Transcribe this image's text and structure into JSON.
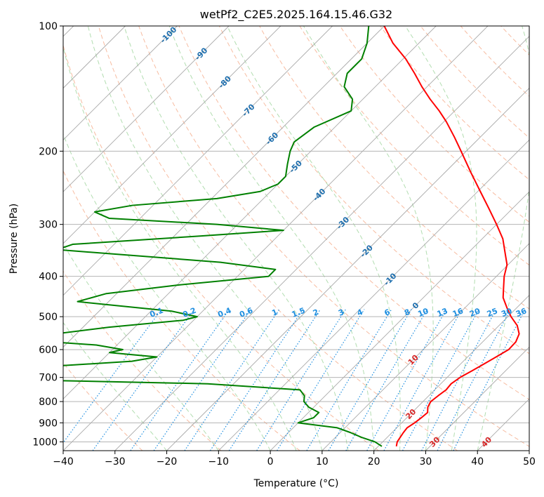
{
  "chart_data": {
    "type": "line",
    "title": "wetPf2_C2E5.2025.164.15.46.G32",
    "xlabel": "Temperature (°C)",
    "ylabel": "Pressure (hPa)",
    "xlim": [
      -40,
      50
    ],
    "ylim": [
      1050,
      100
    ],
    "yscale": "log",
    "xticks": [
      "−40",
      "−30",
      "−20",
      "−10",
      "0",
      "10",
      "20",
      "30",
      "40",
      "50"
    ],
    "yticks": [
      {
        "p": 100,
        "label": "100"
      },
      {
        "p": 200,
        "label": "200"
      },
      {
        "p": 300,
        "label": "300"
      },
      {
        "p": 400,
        "label": "400"
      },
      {
        "p": 500,
        "label": "500"
      },
      {
        "p": 600,
        "label": "600"
      },
      {
        "p": 700,
        "label": "700"
      },
      {
        "p": 800,
        "label": "800"
      },
      {
        "p": 900,
        "label": "900"
      },
      {
        "p": 1000,
        "label": "1000"
      }
    ],
    "grid": true,
    "series": [
      {
        "color": "#ff0000",
        "points": [
          [
            1025,
            23.5
          ],
          [
            1000,
            22.8
          ],
          [
            975,
            22.5
          ],
          [
            950,
            22.2
          ],
          [
            925,
            22.0
          ],
          [
            900,
            22.5
          ],
          [
            875,
            22.8
          ],
          [
            850,
            23.0
          ],
          [
            825,
            22.0
          ],
          [
            800,
            21.5
          ],
          [
            775,
            21.8
          ],
          [
            750,
            22.2
          ],
          [
            725,
            22.0
          ],
          [
            700,
            22.5
          ],
          [
            675,
            23.5
          ],
          [
            650,
            24.5
          ],
          [
            625,
            25.5
          ],
          [
            600,
            26.5
          ],
          [
            575,
            26.4
          ],
          [
            550,
            25.5
          ],
          [
            525,
            23.5
          ],
          [
            500,
            20.6
          ],
          [
            475,
            18.0
          ],
          [
            450,
            15.4
          ],
          [
            425,
            13.5
          ],
          [
            400,
            11.5
          ],
          [
            375,
            9.8
          ],
          [
            350,
            7.0
          ],
          [
            325,
            4.0
          ],
          [
            300,
            0.0
          ],
          [
            275,
            -4.5
          ],
          [
            250,
            -9.5
          ],
          [
            225,
            -15.0
          ],
          [
            200,
            -21.0
          ],
          [
            185,
            -25.0
          ],
          [
            170,
            -29.5
          ],
          [
            160,
            -33.0
          ],
          [
            150,
            -37.0
          ],
          [
            140,
            -41.0
          ],
          [
            130,
            -45.0
          ],
          [
            120,
            -49.5
          ],
          [
            110,
            -55.0
          ],
          [
            100,
            -60.0
          ]
        ]
      },
      {
        "color": "#008000",
        "points": [
          [
            1025,
            20.7
          ],
          [
            1000,
            18.5
          ],
          [
            975,
            15.0
          ],
          [
            950,
            12.0
          ],
          [
            925,
            8.5
          ],
          [
            900,
            0.0
          ],
          [
            875,
            2.0
          ],
          [
            850,
            2.0
          ],
          [
            825,
            -1.0
          ],
          [
            800,
            -3.0
          ],
          [
            775,
            -4.0
          ],
          [
            750,
            -6.0
          ],
          [
            725,
            -25.0
          ],
          [
            710,
            -60.0
          ],
          [
            695,
            -90.0
          ],
          [
            680,
            -76.0
          ],
          [
            660,
            -60.0
          ],
          [
            640,
            -44.0
          ],
          [
            625,
            -40.0
          ],
          [
            610,
            -50.0
          ],
          [
            600,
            -48.0
          ],
          [
            585,
            -54.0
          ],
          [
            570,
            -68.0
          ],
          [
            550,
            -64.0
          ],
          [
            530,
            -55.0
          ],
          [
            510,
            -42.0
          ],
          [
            500,
            -40.0
          ],
          [
            485,
            -46.0
          ],
          [
            470,
            -58.0
          ],
          [
            460,
            -66.0
          ],
          [
            440,
            -62.0
          ],
          [
            420,
            -50.0
          ],
          [
            400,
            -34.0
          ],
          [
            385,
            -34.0
          ],
          [
            370,
            -46.0
          ],
          [
            355,
            -66.0
          ],
          [
            345,
            -80.0
          ],
          [
            335,
            -78.0
          ],
          [
            320,
            -55.0
          ],
          [
            310,
            -40.0
          ],
          [
            300,
            -54.0
          ],
          [
            290,
            -76.0
          ],
          [
            280,
            -80.0
          ],
          [
            270,
            -74.0
          ],
          [
            260,
            -59.0
          ],
          [
            250,
            -52.0
          ],
          [
            240,
            -50.0
          ],
          [
            230,
            -50.0
          ],
          [
            215,
            -52.0
          ],
          [
            200,
            -54.0
          ],
          [
            190,
            -55.0
          ],
          [
            175,
            -54.0
          ],
          [
            160,
            -50.0
          ],
          [
            150,
            -52.0
          ],
          [
            140,
            -56.0
          ],
          [
            130,
            -58.0
          ],
          [
            120,
            -58.0
          ],
          [
            110,
            -60.0
          ],
          [
            100,
            -63.0
          ]
        ]
      }
    ],
    "skew_reference_lines": {
      "isotherms_deg_c": [
        -120,
        -110,
        -100,
        -90,
        -80,
        -70,
        -60,
        -50,
        -40,
        -30,
        -20,
        -10,
        0,
        10,
        20,
        30,
        40,
        50
      ],
      "isotherm_labels": [
        {
          "t": -100,
          "text": "-100"
        },
        {
          "t": -90,
          "text": "-90"
        },
        {
          "t": -80,
          "text": "-80"
        },
        {
          "t": -70,
          "text": "-70"
        },
        {
          "t": -60,
          "text": "-60"
        },
        {
          "t": -50,
          "text": "-50"
        },
        {
          "t": -40,
          "text": "-40"
        },
        {
          "t": -30,
          "text": "-30"
        },
        {
          "t": -20,
          "text": "-20"
        },
        {
          "t": -10,
          "text": "-10"
        },
        {
          "t": 0,
          "text": "0"
        },
        {
          "t": 10,
          "text": "10"
        },
        {
          "t": 20,
          "text": "20"
        },
        {
          "t": 30,
          "text": "30"
        },
        {
          "t": 40,
          "text": "40"
        }
      ],
      "mixing_ratios_g_kg": [
        0.1,
        0.2,
        0.4,
        0.6,
        1,
        1.5,
        2,
        3,
        4,
        6,
        8,
        10,
        13,
        16,
        20,
        25,
        30,
        36
      ],
      "mixing_ratio_labels": [
        "0.1",
        "0.2",
        "0.4",
        "0.6",
        "1",
        "1.5",
        "2",
        "3",
        "4",
        "6",
        "8",
        "10",
        "13",
        "16",
        "20",
        "25",
        "30",
        "36"
      ],
      "dry_adiabats_theta_k": [
        230,
        245,
        260,
        275,
        290,
        305,
        320,
        335,
        350,
        365,
        380,
        395,
        410,
        425,
        440,
        455,
        470,
        485,
        500,
        515,
        530
      ],
      "moist_adiabats_start_deg_c": [
        -20,
        -10,
        0,
        5,
        10,
        15,
        20,
        25,
        30,
        35,
        40
      ]
    },
    "colors": {
      "temperature": "#ff0000",
      "dewpoint": "#008000",
      "isotherm_grid": "#aaaaaa",
      "dry_adiabat": "#f4a582",
      "moist_adiabat": "#91cf8f",
      "mixing_ratio": "#1f8fe0",
      "isotherm_label_cold": "#1f6fae",
      "isotherm_label_warm": "#d62728"
    }
  }
}
